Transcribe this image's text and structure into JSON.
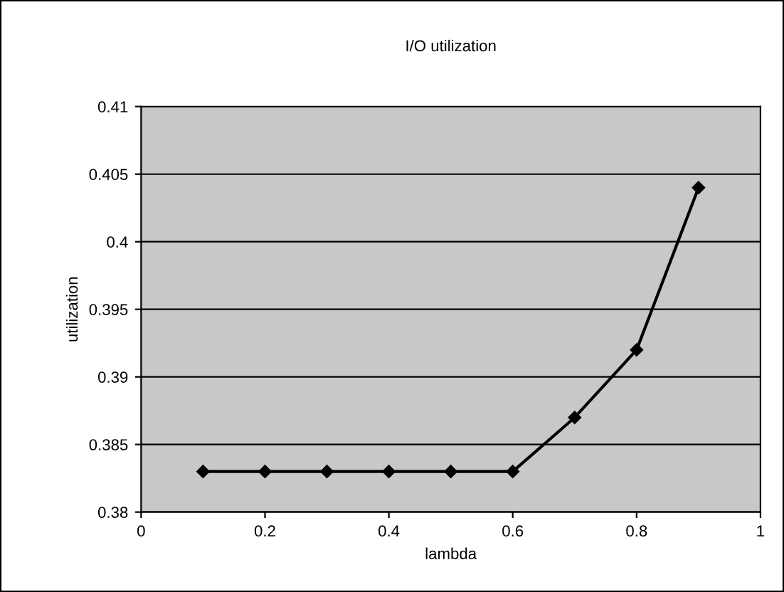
{
  "chart_data": {
    "type": "line",
    "title": "I/O utilization",
    "xlabel": "lambda",
    "ylabel": "utilization",
    "x": [
      0.1,
      0.2,
      0.3,
      0.4,
      0.5,
      0.6,
      0.7,
      0.8,
      0.9
    ],
    "series": [
      {
        "color": "#000000",
        "values": [
          0.383,
          0.383,
          0.383,
          0.383,
          0.383,
          0.383,
          0.387,
          0.392,
          0.404
        ]
      }
    ],
    "xlim": [
      0,
      1
    ],
    "xticks": [
      0,
      0.2,
      0.4,
      0.6,
      0.8,
      1
    ],
    "ylim": [
      0.38,
      0.41
    ],
    "yticks": [
      0.38,
      0.385,
      0.39,
      0.395,
      0.4,
      0.405,
      0.41
    ],
    "grid": "y",
    "marker": "diamond",
    "line_style": "solid"
  }
}
